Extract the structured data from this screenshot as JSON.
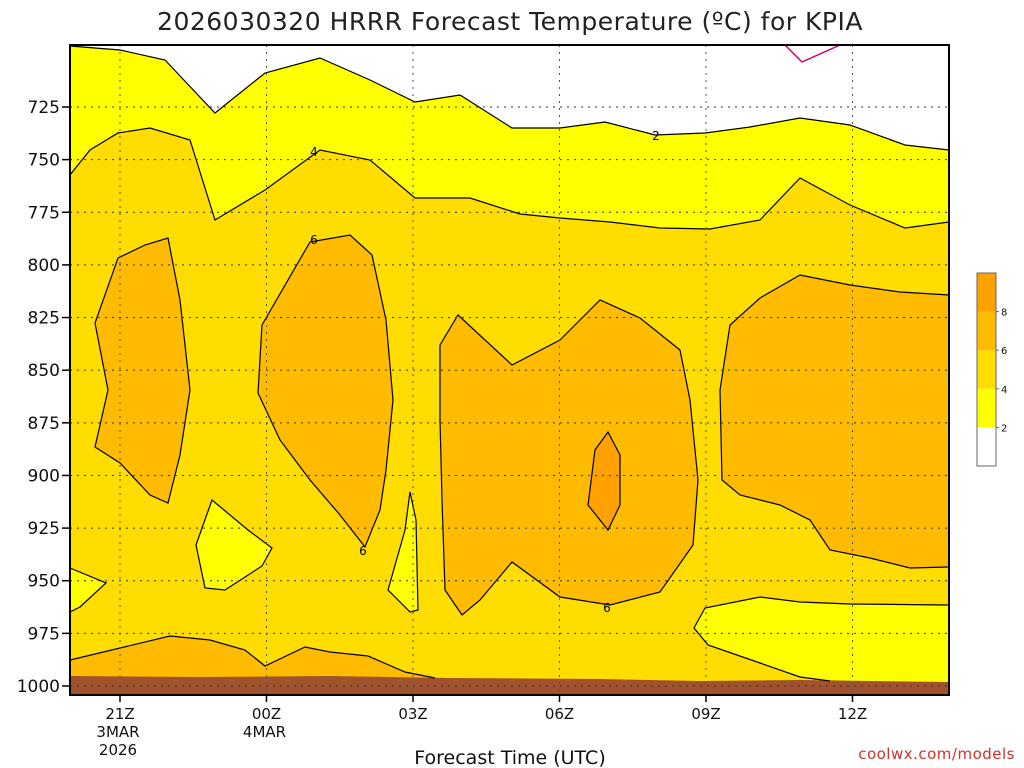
{
  "chart_data": {
    "type": "heatmap",
    "title": "2026030320 HRRR Forecast Temperature (ºC) for KPIA",
    "xlabel": "Forecast Time (UTC)",
    "ylabel": "",
    "y_scale": "linear",
    "y_inverted": true,
    "y_ticks": [
      725,
      750,
      775,
      800,
      825,
      850,
      875,
      900,
      925,
      950,
      975,
      1000
    ],
    "y_tick_labels": [
      "725",
      "750",
      "775",
      "800",
      "825",
      "850",
      "875",
      "900",
      "925",
      "950",
      "975",
      "1000"
    ],
    "x_ticks": [
      {
        "label": "21Z",
        "sub": [
          "3MAR",
          "2026"
        ]
      },
      {
        "label": "00Z",
        "sub": [
          "4MAR"
        ]
      },
      {
        "label": "03Z",
        "sub": []
      },
      {
        "label": "06Z",
        "sub": []
      },
      {
        "label": "09Z",
        "sub": []
      },
      {
        "label": "12Z",
        "sub": []
      }
    ],
    "grid": true,
    "contour_levels": [
      2,
      4,
      6,
      8
    ],
    "contour_labels": [
      "2",
      "4",
      "6",
      "6",
      "6"
    ],
    "colorbar": {
      "placement": "right",
      "ticks": [
        "2",
        "4",
        "6",
        "8"
      ],
      "colors": [
        "#ffffff",
        "#ffff00",
        "#ffdd00",
        "#ffbb00",
        "#ffa200"
      ]
    },
    "fill_colors": {
      "lt2": "#ffffff",
      "2to4": "#ffff00",
      "4to6": "#ffdd00",
      "6to8": "#ffbb00",
      "gt8": "#ffa200",
      "ground": "#a0522d",
      "lt0_contour": "#cc0077"
    }
  },
  "credit": "coolwx.com/models"
}
